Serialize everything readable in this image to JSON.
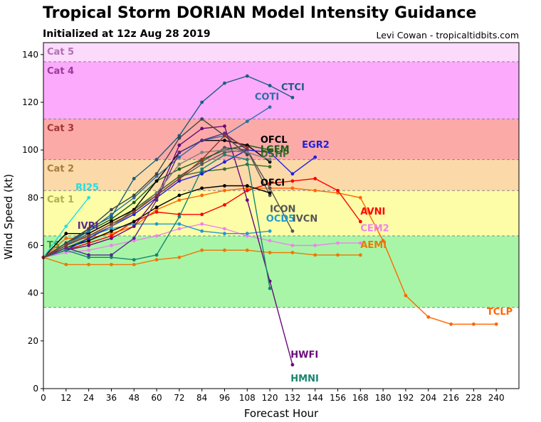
{
  "title": "Tropical Storm DORIAN Model Intensity Guidance",
  "subtitle": "Initialized at 12z Aug 28 2019",
  "credit": "Levi Cowan - tropicaltidbits.com",
  "chart_data": {
    "type": "line",
    "xlabel": "Forecast Hour",
    "ylabel": "Wind Speed (kt)",
    "xlim": [
      0,
      252
    ],
    "ylim": [
      0,
      145
    ],
    "xticks": [
      0,
      12,
      24,
      36,
      48,
      60,
      72,
      84,
      96,
      108,
      120,
      132,
      144,
      156,
      168,
      180,
      192,
      204,
      216,
      228,
      240
    ],
    "yticks": [
      0,
      20,
      40,
      60,
      80,
      100,
      120,
      140
    ],
    "categories": [
      {
        "name": "TS",
        "min": 34,
        "max": 64,
        "color": "#a8f5a8",
        "label_color": "#2e9a2e"
      },
      {
        "name": "Cat 1",
        "min": 64,
        "max": 83,
        "color": "#fdfda8",
        "label_color": "#b0b050"
      },
      {
        "name": "Cat 2",
        "min": 83,
        "max": 96,
        "color": "#fcd9a8",
        "label_color": "#a57c40"
      },
      {
        "name": "Cat 3",
        "min": 96,
        "max": 113,
        "color": "#fcaaa8",
        "label_color": "#a03535"
      },
      {
        "name": "Cat 4",
        "min": 113,
        "max": 137,
        "color": "#fcaafc",
        "label_color": "#9a3a9a"
      },
      {
        "name": "Cat 5",
        "min": 137,
        "max": 145,
        "color": "#fcdafc",
        "label_color": "#b070b0"
      }
    ],
    "series": [
      {
        "name": "TCLP",
        "color": "#ff6600",
        "label": {
          "x": 235,
          "y": 31
        },
        "x": [
          0,
          12,
          24,
          36,
          48,
          60,
          72,
          84,
          96,
          108,
          120,
          132,
          144,
          156,
          168,
          180,
          192,
          204,
          216,
          228,
          240
        ],
        "y": [
          55,
          63,
          63,
          65,
          68,
          75,
          79,
          81,
          83,
          84,
          84,
          84,
          83,
          82,
          80,
          62,
          39,
          30,
          27,
          27,
          27
        ]
      },
      {
        "name": "AVNI",
        "color": "#ff0000",
        "label": {
          "x": 168,
          "y": 73
        },
        "x": [
          0,
          12,
          24,
          36,
          48,
          60,
          72,
          84,
          96,
          108,
          120,
          132,
          144,
          156,
          168
        ],
        "y": [
          55,
          58,
          61,
          64,
          70,
          74,
          73,
          73,
          77,
          83,
          86,
          87,
          88,
          83,
          70
        ]
      },
      {
        "name": "AEMI",
        "color": "#ee7700",
        "label": {
          "x": 168,
          "y": 59
        },
        "x": [
          0,
          12,
          24,
          36,
          48,
          60,
          72,
          84,
          96,
          108,
          120,
          132,
          144,
          156,
          168
        ],
        "y": [
          55,
          52,
          52,
          52,
          52,
          54,
          55,
          58,
          58,
          58,
          57,
          57,
          56,
          56,
          56
        ]
      },
      {
        "name": "CEM2",
        "color": "#ee82ee",
        "label": {
          "x": 168,
          "y": 66
        },
        "x": [
          0,
          12,
          24,
          36,
          48,
          60,
          72,
          84,
          96,
          108,
          120,
          132,
          144,
          156,
          168
        ],
        "y": [
          55,
          57,
          58,
          60,
          62,
          64,
          67,
          69,
          67,
          64,
          62,
          60,
          60,
          61,
          61
        ]
      },
      {
        "name": "OCD5",
        "color": "#1f9bd0",
        "label": {
          "x": 118,
          "y": 70
        },
        "x": [
          0,
          12,
          24,
          36,
          48,
          60,
          72,
          84,
          96,
          108,
          120
        ],
        "y": [
          55,
          60,
          64,
          67,
          69,
          69,
          69,
          66,
          65,
          65,
          66
        ]
      },
      {
        "name": "ICON",
        "color": "#555555",
        "label": {
          "x": 120,
          "y": 74
        },
        "x": [
          0,
          12,
          24,
          36,
          48,
          60,
          72,
          84,
          96,
          108,
          120
        ],
        "y": [
          55,
          60,
          65,
          70,
          75,
          82,
          89,
          95,
          101,
          100,
          81
        ]
      },
      {
        "name": "IVCN",
        "color": "#555555",
        "label": {
          "x": 132,
          "y": 70
        },
        "x": [
          0,
          12,
          24,
          36,
          48,
          60,
          72,
          84,
          96,
          108,
          120,
          132
        ],
        "y": [
          55,
          58,
          63,
          68,
          74,
          81,
          88,
          94,
          99,
          100,
          84,
          66
        ]
      },
      {
        "name": "OFCI",
        "color": "#000000",
        "label": {
          "x": 115,
          "y": 85
        },
        "x": [
          0,
          12,
          24,
          36,
          48,
          60,
          72,
          84,
          96,
          108,
          120
        ],
        "y": [
          55,
          59,
          62,
          66,
          70,
          76,
          81,
          84,
          85,
          85,
          82
        ]
      },
      {
        "name": "DSHP",
        "color": "#3d6e2e",
        "label": {
          "x": 115,
          "y": 97
        },
        "x": [
          0,
          12,
          24,
          36,
          48,
          60,
          72,
          84,
          96,
          108,
          120
        ],
        "y": [
          55,
          59,
          63,
          68,
          75,
          82,
          89,
          91,
          92,
          94,
          93
        ]
      },
      {
        "name": "LGEM",
        "color": "#1a5e1a",
        "label": {
          "x": 115,
          "y": 99
        },
        "x": [
          0,
          12,
          24,
          36,
          48,
          60,
          72,
          84,
          96,
          108,
          120
        ],
        "y": [
          55,
          61,
          66,
          71,
          78,
          87,
          92,
          96,
          100,
          102,
          100
        ]
      },
      {
        "name": "OFCL",
        "color": "#000000",
        "label": {
          "x": 115,
          "y": 103
        },
        "x": [
          0,
          12,
          24,
          36,
          48,
          60,
          72,
          84,
          96,
          108,
          120
        ],
        "y": [
          55,
          65,
          65,
          70,
          75,
          87,
          99,
          104,
          104,
          102,
          95
        ]
      },
      {
        "name": "EGR2",
        "color": "#2020dd",
        "label": {
          "x": 137,
          "y": 101
        },
        "x": [
          0,
          12,
          24,
          36,
          48,
          60,
          72,
          84,
          96,
          108,
          120,
          132,
          144
        ],
        "y": [
          55,
          58,
          63,
          68,
          73,
          80,
          87,
          90,
          95,
          100,
          99,
          90,
          97
        ]
      },
      {
        "name": "COTI",
        "color": "#2a6ea8",
        "label": {
          "x": 112,
          "y": 121
        },
        "x": [
          0,
          12,
          24,
          36,
          48,
          60,
          72,
          84,
          96,
          108,
          120
        ],
        "y": [
          55,
          60,
          66,
          73,
          80,
          89,
          97,
          104,
          106,
          112,
          118
        ]
      },
      {
        "name": "CTCI",
        "color": "#1a5e80",
        "label": {
          "x": 126,
          "y": 125
        },
        "x": [
          0,
          12,
          24,
          36,
          48,
          60,
          72,
          84,
          96,
          108,
          120,
          132
        ],
        "y": [
          55,
          60,
          67,
          72,
          88,
          96,
          106,
          120,
          128,
          131,
          127,
          122
        ]
      },
      {
        "name": "HWFI",
        "color": "#6a0a7a",
        "label": {
          "x": 131,
          "y": 13
        },
        "x": [
          0,
          12,
          24,
          36,
          48,
          60,
          72,
          84,
          96,
          108,
          120,
          132
        ],
        "y": [
          55,
          58,
          60,
          63,
          68,
          80,
          102,
          109,
          110,
          79,
          45,
          10
        ]
      },
      {
        "name": "HMNI",
        "color": "#16866e",
        "label": {
          "x": 131,
          "y": 3
        },
        "x": [
          0,
          12,
          24,
          36,
          48,
          60,
          72,
          84,
          96,
          108,
          120
        ],
        "y": [
          55,
          58,
          55,
          55,
          54,
          56,
          72,
          92,
          98,
          96,
          42
        ]
      },
      {
        "name": "IVRI",
        "color": "#5a2a8a",
        "label": {
          "x": 18,
          "y": 67
        },
        "x": [
          0,
          12,
          24,
          36,
          48,
          60,
          72,
          84,
          96,
          108
        ],
        "y": [
          55,
          59,
          56,
          56,
          63,
          79,
          99,
          104,
          107,
          100
        ]
      },
      {
        "name": "RI25",
        "color": "#22e0e0",
        "label": {
          "x": 17,
          "y": 83
        },
        "x": [
          0,
          12,
          24
        ],
        "y": [
          55,
          68,
          80
        ]
      },
      {
        "name": "",
        "color": "#808080",
        "x": [
          0,
          12,
          24,
          36,
          48,
          60,
          72,
          84,
          96,
          108,
          120
        ],
        "y": [
          55,
          61,
          64,
          68,
          74,
          82,
          94,
          99,
          100,
          99,
          96
        ]
      },
      {
        "name": "",
        "color": "#444444",
        "x": [
          0,
          12,
          24,
          36,
          48,
          60,
          72,
          84,
          96,
          108
        ],
        "y": [
          55,
          61,
          67,
          75,
          81,
          90,
          105,
          113,
          106,
          98
        ]
      },
      {
        "name": "",
        "color": "#8b3a2a",
        "x": [
          0,
          12,
          24,
          36,
          48,
          60,
          72,
          84,
          96,
          108
        ],
        "y": [
          55,
          60,
          64,
          69,
          74,
          81,
          88,
          96,
          106,
          101
        ]
      }
    ]
  }
}
